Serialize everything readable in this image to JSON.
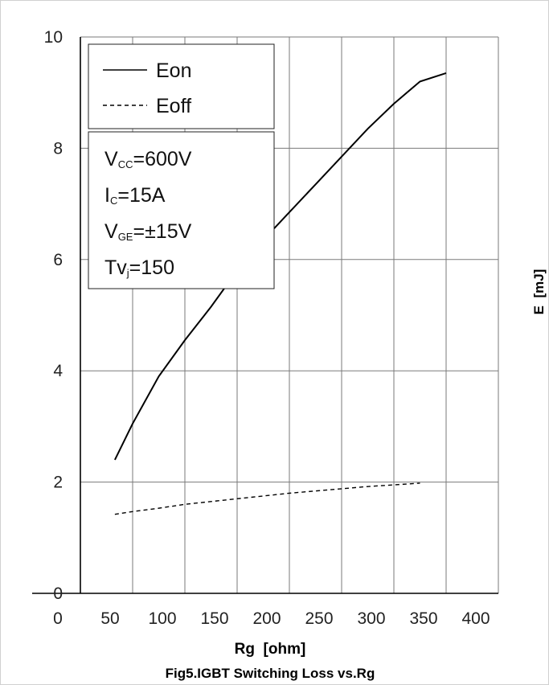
{
  "chart_data": {
    "type": "line",
    "title": "",
    "caption": "Fig5.IGBT Switching Loss vs.Rg",
    "xlabel": "Rg  [ohm]",
    "ylabel": "E  [mJ]",
    "xlim": [
      0,
      400
    ],
    "ylim": [
      0,
      10
    ],
    "xticks": [
      0,
      50,
      100,
      150,
      200,
      250,
      300,
      350,
      400
    ],
    "yticks": [
      0,
      2,
      4,
      6,
      8,
      10
    ],
    "grid": true,
    "legend": "top-left",
    "series": [
      {
        "name": "Eon",
        "style": "solid",
        "x": [
          33,
          50,
          75,
          100,
          125,
          150,
          175,
          200,
          225,
          250,
          275,
          300,
          325,
          350
        ],
        "y": [
          2.4,
          3.05,
          3.9,
          4.55,
          5.15,
          5.8,
          6.35,
          6.85,
          7.35,
          7.85,
          8.35,
          8.8,
          9.2,
          9.35
        ]
      },
      {
        "name": "Eoff",
        "style": "dashed",
        "x": [
          33,
          50,
          75,
          100,
          125,
          150,
          175,
          200,
          225,
          250,
          275,
          300,
          325
        ],
        "y": [
          1.42,
          1.47,
          1.53,
          1.6,
          1.65,
          1.7,
          1.75,
          1.8,
          1.84,
          1.88,
          1.92,
          1.95,
          1.98
        ]
      }
    ],
    "conditions": [
      {
        "main": "V",
        "sub": "CC",
        "rest": "=600V"
      },
      {
        "main": "I",
        "sub": "C",
        "rest": "=15A"
      },
      {
        "main": "V",
        "sub": "GE",
        "rest": "=±15V"
      },
      {
        "main": "Tv",
        "sub": "j",
        "rest": "=150"
      }
    ]
  }
}
